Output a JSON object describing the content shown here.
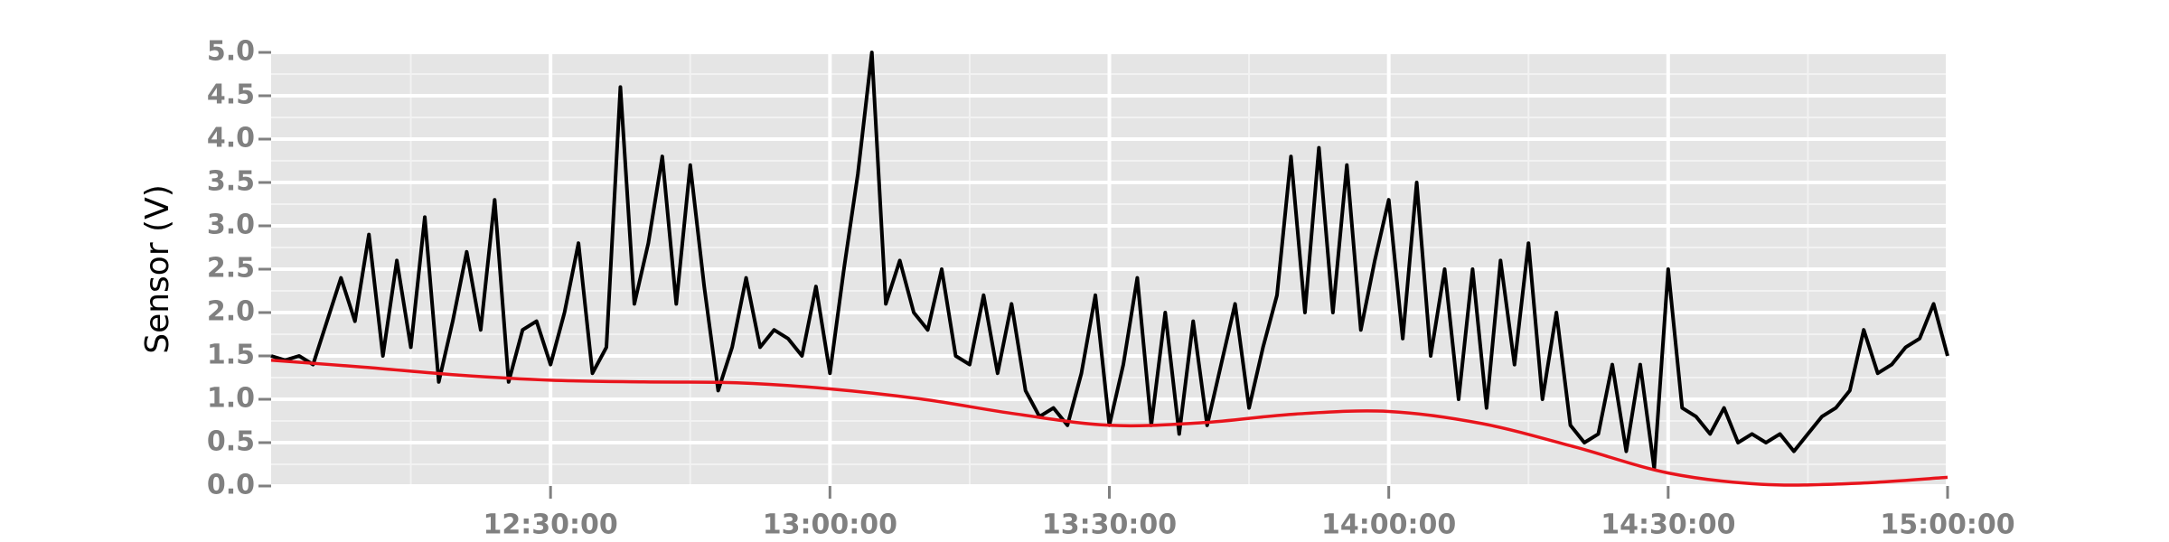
{
  "chart_data": {
    "type": "line",
    "y_label": "Sensor (V)",
    "xlim": [
      "12:00:00",
      "15:00:00"
    ],
    "xticks": [
      "12:30:00",
      "13:00:00",
      "13:30:00",
      "14:00:00",
      "14:30:00",
      "15:00:00"
    ],
    "x_minor_ticks": [
      "12:15:00",
      "12:45:00",
      "13:15:00",
      "13:45:00",
      "14:15:00",
      "14:45:00"
    ],
    "ylim": [
      0,
      5
    ],
    "yticks": [
      {
        "value": 0,
        "label": "0.0"
      },
      0.5,
      {
        "value": 1,
        "label": "1.0"
      },
      1.5,
      {
        "value": 2,
        "label": "2.0"
      },
      2.5,
      {
        "value": 3,
        "label": "3.0"
      },
      3.5,
      {
        "value": 4,
        "label": "4.0"
      },
      4.5,
      {
        "value": 5,
        "label": "5.0"
      }
    ],
    "y_minor_ticks": [
      0.25,
      0.75,
      1.25,
      1.75,
      2.25,
      2.75,
      3.25,
      3.75,
      4.25,
      4.75
    ],
    "grid": true,
    "series": [
      {
        "color": "#000000",
        "smooth": false,
        "x": [
          "12:00:00",
          "12:01:30",
          "12:03:00",
          "12:04:30",
          "12:06:00",
          "12:07:30",
          "12:09:00",
          "12:10:30",
          "12:12:00",
          "12:13:30",
          "12:15:00",
          "12:16:30",
          "12:18:00",
          "12:19:30",
          "12:21:00",
          "12:22:30",
          "12:24:00",
          "12:25:30",
          "12:27:00",
          "12:28:30",
          "12:30:00",
          "12:31:30",
          "12:33:00",
          "12:34:30",
          "12:36:00",
          "12:37:30",
          "12:39:00",
          "12:40:30",
          "12:42:00",
          "12:43:30",
          "12:45:00",
          "12:46:30",
          "12:48:00",
          "12:49:30",
          "12:51:00",
          "12:52:30",
          "12:54:00",
          "12:55:30",
          "12:57:00",
          "12:58:30",
          "13:00:00",
          "13:01:30",
          "13:03:00",
          "13:04:30",
          "13:06:00",
          "13:07:30",
          "13:09:00",
          "13:10:30",
          "13:12:00",
          "13:13:30",
          "13:15:00",
          "13:16:30",
          "13:18:00",
          "13:19:30",
          "13:21:00",
          "13:22:30",
          "13:24:00",
          "13:25:30",
          "13:27:00",
          "13:28:30",
          "13:30:00",
          "13:31:30",
          "13:33:00",
          "13:34:30",
          "13:36:00",
          "13:37:30",
          "13:39:00",
          "13:40:30",
          "13:42:00",
          "13:43:30",
          "13:45:00",
          "13:46:30",
          "13:48:00",
          "13:49:30",
          "13:51:00",
          "13:52:30",
          "13:54:00",
          "13:55:30",
          "13:57:00",
          "13:58:30",
          "14:00:00",
          "14:01:30",
          "14:03:00",
          "14:04:30",
          "14:06:00",
          "14:07:30",
          "14:09:00",
          "14:10:30",
          "14:12:00",
          "14:13:30",
          "14:15:00",
          "14:16:30",
          "14:18:00",
          "14:19:30",
          "14:21:00",
          "14:22:30",
          "14:24:00",
          "14:25:30",
          "14:27:00",
          "14:28:30",
          "14:30:00",
          "14:31:30",
          "14:33:00",
          "14:34:30",
          "14:36:00",
          "14:37:30",
          "14:39:00",
          "14:40:30",
          "14:42:00",
          "14:43:30",
          "14:45:00",
          "14:46:30",
          "14:48:00",
          "14:49:30",
          "14:51:00",
          "14:52:30",
          "14:54:00",
          "14:55:30",
          "14:57:00",
          "14:58:30",
          "15:00:00"
        ],
        "values": [
          1.5,
          1.45,
          1.5,
          1.4,
          1.9,
          2.4,
          1.9,
          2.9,
          1.5,
          2.6,
          1.6,
          3.1,
          1.2,
          1.9,
          2.7,
          1.8,
          3.3,
          1.2,
          1.8,
          1.9,
          1.4,
          2.0,
          2.8,
          1.3,
          1.6,
          4.6,
          2.1,
          2.8,
          3.8,
          2.1,
          3.7,
          2.3,
          1.1,
          1.6,
          2.4,
          1.6,
          1.8,
          1.7,
          1.5,
          2.3,
          1.3,
          2.5,
          3.6,
          5.0,
          2.1,
          2.6,
          2.0,
          1.8,
          2.5,
          1.5,
          1.4,
          2.2,
          1.3,
          2.1,
          1.1,
          0.8,
          0.9,
          0.7,
          1.3,
          2.2,
          0.7,
          1.4,
          2.4,
          0.7,
          2.0,
          0.6,
          1.9,
          0.7,
          1.4,
          2.1,
          0.9,
          1.6,
          2.2,
          3.8,
          2.0,
          3.9,
          2.0,
          3.7,
          1.8,
          2.6,
          3.3,
          1.7,
          3.5,
          1.5,
          2.5,
          1.0,
          2.5,
          0.9,
          2.6,
          1.4,
          2.8,
          1.0,
          2.0,
          0.7,
          0.5,
          0.6,
          1.4,
          0.4,
          1.4,
          0.2,
          2.5,
          0.9,
          0.8,
          0.6,
          0.9,
          0.5,
          0.6,
          0.5,
          0.6,
          0.4,
          0.6,
          0.8,
          0.9,
          1.1,
          1.8,
          1.3,
          1.4,
          1.6,
          1.7,
          2.1,
          1.5
        ]
      },
      {
        "color": "#e8141c",
        "smooth": true,
        "x": [
          "12:00:00",
          "12:10:00",
          "12:20:00",
          "12:30:00",
          "12:40:00",
          "12:50:00",
          "13:00:00",
          "13:10:00",
          "13:20:00",
          "13:30:00",
          "13:40:00",
          "13:50:00",
          "14:00:00",
          "14:10:00",
          "14:20:00",
          "14:30:00",
          "14:40:00",
          "14:50:00",
          "15:00:00"
        ],
        "values": [
          1.45,
          1.37,
          1.28,
          1.22,
          1.2,
          1.19,
          1.12,
          1.0,
          0.83,
          0.7,
          0.73,
          0.83,
          0.86,
          0.72,
          0.45,
          0.15,
          0.02,
          0.03,
          0.1
        ]
      }
    ]
  }
}
